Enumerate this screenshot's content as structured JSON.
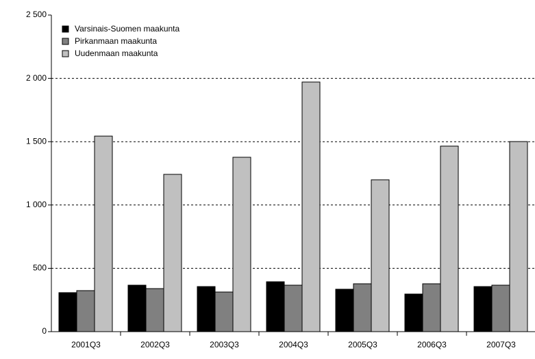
{
  "chart_data": {
    "type": "bar",
    "categories": [
      "2001Q3",
      "2002Q3",
      "2003Q3",
      "2004Q3",
      "2005Q3",
      "2006Q3",
      "2007Q3"
    ],
    "series": [
      {
        "name": "Varsinais-Suomen maakunta",
        "color": "#000000",
        "values": [
          308,
          367,
          356,
          394,
          335,
          297,
          356
        ]
      },
      {
        "name": "Pirkanmaan maakunta",
        "color": "#808080",
        "values": [
          324,
          340,
          313,
          367,
          378,
          378,
          367
        ]
      },
      {
        "name": "Uudenmaan maakunta",
        "color": "#c0c0c0",
        "values": [
          1544,
          1242,
          1377,
          1971,
          1199,
          1465,
          1501
        ]
      }
    ],
    "ylim": [
      0,
      2500
    ],
    "yticks": [
      0,
      500,
      {
        "value": 1000,
        "label": "1 000"
      },
      {
        "value": 1500,
        "label": "1 500"
      },
      {
        "value": 2000,
        "label": "2 000"
      },
      {
        "value": 2500,
        "label": "2 500"
      }
    ],
    "grid": true
  }
}
